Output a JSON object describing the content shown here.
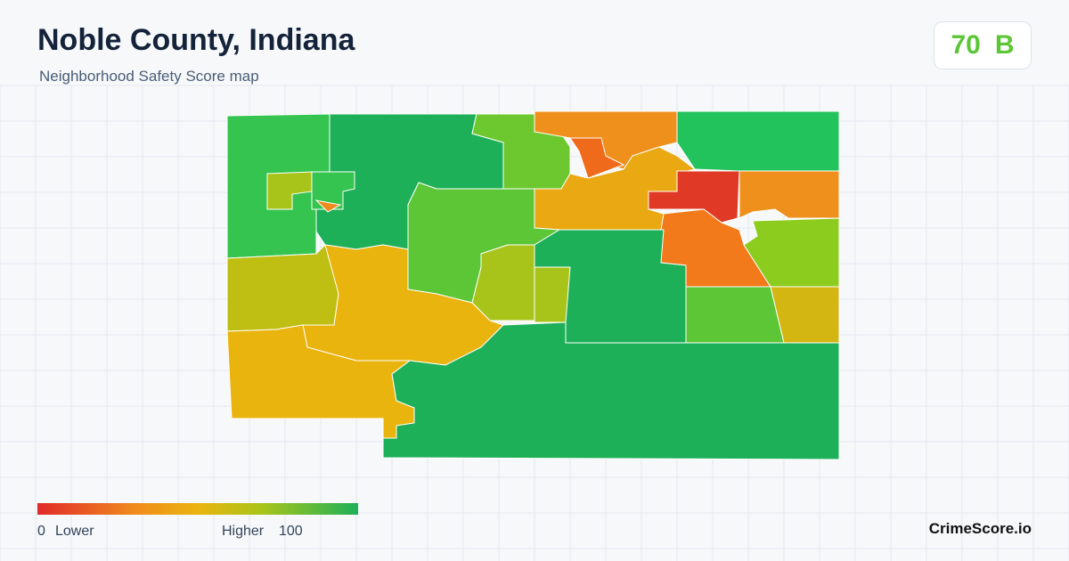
{
  "header": {
    "title": "Noble County, Indiana",
    "subtitle": "Neighborhood Safety Score map"
  },
  "score": {
    "value": "70",
    "grade": "B"
  },
  "legend": {
    "min": "0",
    "min_label": "Lower",
    "max_label": "Higher",
    "max": "100"
  },
  "footer": {
    "brand": "CrimeScore.io"
  }
}
